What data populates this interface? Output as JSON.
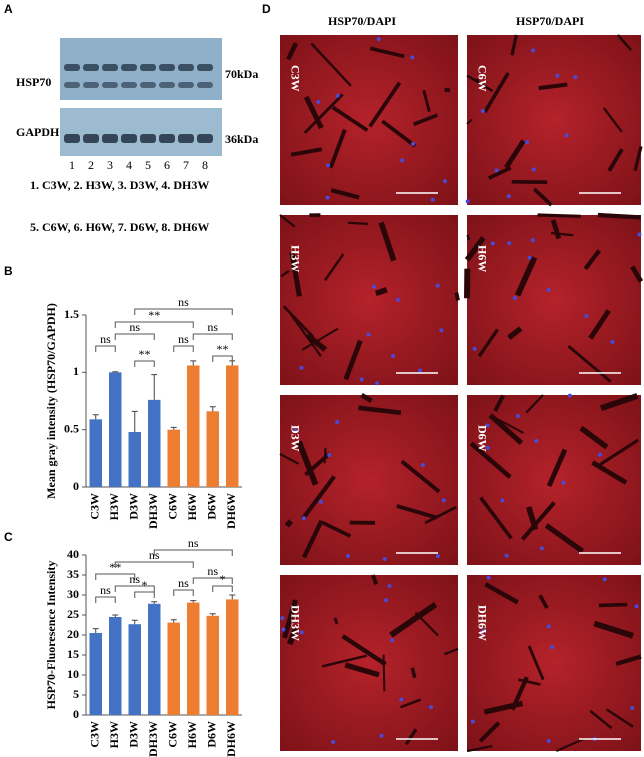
{
  "panel_labels": [
    "A",
    "B",
    "C",
    "D"
  ],
  "blot": {
    "bands": [
      "HSP70",
      "GAPDH"
    ],
    "sizes": [
      "70kDa",
      "36kDa"
    ],
    "lanes": [
      "1",
      "2",
      "3",
      "4",
      "5",
      "6",
      "7",
      "8"
    ],
    "legend": [
      "1. C3W,  2. H3W,  3. D3W, 4. DH3W",
      "5. C6W, 6. H6W, 7. D6W, 8. DH6W"
    ]
  },
  "micrographs": {
    "column_titles": [
      "HSP70/DAPI",
      "HSP70/DAPI"
    ],
    "columns": [
      [
        "C3W",
        "H3W",
        "D3W",
        "DH3W"
      ],
      [
        "C6W",
        "H6W",
        "D6W",
        "DH6W"
      ]
    ]
  },
  "chart_data": [
    {
      "type": "bar",
      "y_label": "Mean gray intensity (HSP70/GAPDH)",
      "categories": [
        "C3W",
        "H3W",
        "D3W",
        "DH3W",
        "C6W",
        "H6W",
        "D6W",
        "DH6W"
      ],
      "values": [
        0.59,
        1.0,
        0.48,
        0.76,
        0.5,
        1.06,
        0.66,
        1.06
      ],
      "errors": [
        0.04,
        0.005,
        0.18,
        0.22,
        0.02,
        0.04,
        0.04,
        0.04
      ],
      "colors": [
        "#4472c4",
        "#4472c4",
        "#4472c4",
        "#4472c4",
        "#ed7d31",
        "#ed7d31",
        "#ed7d31",
        "#ed7d31"
      ],
      "ylim": [
        0,
        1.5
      ],
      "yticks": [
        0,
        0.5,
        1,
        1.5
      ],
      "comparisons": [
        {
          "groups": [
            "C3W",
            "H3W"
          ],
          "label": "ns"
        },
        {
          "groups": [
            "H3W",
            "DH3W"
          ],
          "label": "ns"
        },
        {
          "groups": [
            "D3W",
            "DH3W"
          ],
          "label": "**"
        },
        {
          "groups": [
            "H3W",
            "H6W"
          ],
          "label": "**"
        },
        {
          "groups": [
            "D3W",
            "DH6W"
          ],
          "label": "ns"
        },
        {
          "groups": [
            "C6W",
            "H6W"
          ],
          "label": "ns"
        },
        {
          "groups": [
            "H6W",
            "DH6W"
          ],
          "label": "ns"
        },
        {
          "groups": [
            "D6W",
            "DH6W"
          ],
          "label": "**"
        }
      ]
    },
    {
      "type": "bar",
      "y_label": "HSP70-Fluoresence Intensity",
      "categories": [
        "C3W",
        "H3W",
        "D3W",
        "DH3W",
        "C6W",
        "H6W",
        "D6W",
        "DH6W"
      ],
      "values": [
        20.5,
        24.5,
        22.7,
        27.8,
        23.1,
        28.1,
        24.8,
        28.9
      ],
      "errors": [
        1.1,
        0.5,
        1.0,
        0.5,
        0.7,
        0.5,
        0.5,
        1.1
      ],
      "colors": [
        "#4472c4",
        "#4472c4",
        "#4472c4",
        "#4472c4",
        "#ed7d31",
        "#ed7d31",
        "#ed7d31",
        "#ed7d31"
      ],
      "ylim": [
        0,
        40
      ],
      "yticks": [
        0,
        5,
        10,
        15,
        20,
        25,
        30,
        35,
        40
      ],
      "comparisons": [
        {
          "groups": [
            "C3W",
            "H3W"
          ],
          "label": "ns"
        },
        {
          "groups": [
            "C3W",
            "D3W"
          ],
          "label": "**"
        },
        {
          "groups": [
            "H3W",
            "DH3W"
          ],
          "label": "ns"
        },
        {
          "groups": [
            "D3W",
            "DH3W"
          ],
          "label": "*"
        },
        {
          "groups": [
            "DH3W",
            "DH6W"
          ],
          "label": "ns"
        },
        {
          "groups": [
            "H3W",
            "H6W"
          ],
          "label": "ns"
        },
        {
          "groups": [
            "C6W",
            "H6W"
          ],
          "label": "ns"
        },
        {
          "groups": [
            "H6W",
            "DH6W"
          ],
          "label": "ns"
        },
        {
          "groups": [
            "D6W",
            "DH6W"
          ],
          "label": "*"
        }
      ]
    }
  ]
}
